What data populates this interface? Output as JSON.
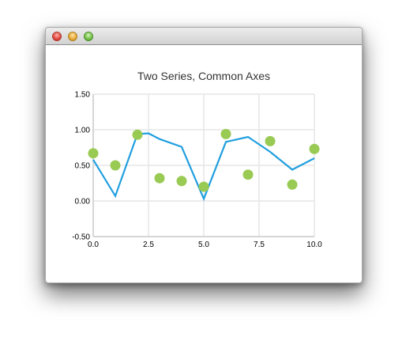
{
  "window": {
    "controls": [
      {
        "name": "close",
        "color": "#e0443b"
      },
      {
        "name": "minimize",
        "color": "#e6a93a"
      },
      {
        "name": "zoom",
        "color": "#6fbe44"
      }
    ]
  },
  "colors": {
    "line": "#209fdf",
    "scatter": "#99ca53",
    "grid": "#e6e6e6",
    "axis": "#cccccc",
    "text": "#000000"
  },
  "chart_data": {
    "type": "line",
    "title": "Two Series, Common Axes",
    "xlabel": "",
    "ylabel": "",
    "xlim": [
      0,
      10
    ],
    "ylim": [
      -0.5,
      1.5
    ],
    "x_ticks": [
      "0.0",
      "2.5",
      "5.0",
      "7.5",
      "10.0"
    ],
    "y_ticks": [
      "-0.50",
      "0.00",
      "0.50",
      "1.00",
      "1.50"
    ],
    "x_tick_values": [
      0,
      2.5,
      5,
      7.5,
      10
    ],
    "y_tick_values": [
      -0.5,
      0,
      0.5,
      1.0,
      1.5
    ],
    "grid": true,
    "legend": "none",
    "series": [
      {
        "type": "line",
        "x": [
          0,
          1,
          2,
          2.5,
          3,
          4,
          5,
          6,
          7,
          8,
          9,
          10
        ],
        "values": [
          0.58,
          0.07,
          0.94,
          0.95,
          0.87,
          0.76,
          0.03,
          0.83,
          0.9,
          0.69,
          0.44,
          0.6
        ]
      },
      {
        "type": "scatter",
        "x": [
          0,
          1,
          2,
          3,
          4,
          5,
          6,
          7,
          8,
          9,
          10
        ],
        "values": [
          0.67,
          0.5,
          0.93,
          0.32,
          0.28,
          0.2,
          0.94,
          0.37,
          0.84,
          0.23,
          0.73
        ]
      }
    ]
  }
}
